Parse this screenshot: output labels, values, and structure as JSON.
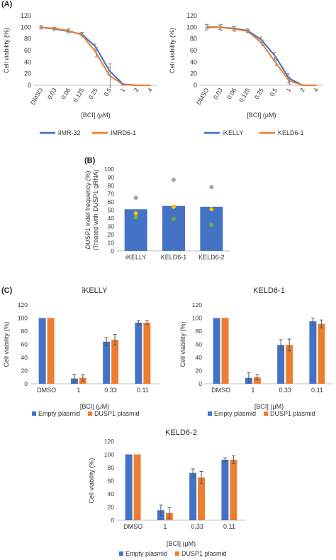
{
  "panel_labels": [
    "(A)",
    "(B)",
    "(C)"
  ],
  "chart_data": [
    {
      "type": "line",
      "panel": "(A)",
      "xlabel": "[BCI] (µM)",
      "ylabel": "Cell viability (%)",
      "ylim": [
        0,
        120
      ],
      "yticks": [
        0,
        20,
        40,
        60,
        80,
        100,
        120
      ],
      "categories": [
        "DMSO",
        "0.03",
        "0.06",
        "0.125",
        "0.25",
        "0.5",
        "1",
        "2",
        "4"
      ],
      "legend_position": "bottom",
      "series": [
        {
          "name": "iIMR-32",
          "color": "#3a6fc4",
          "values": [
            100,
            97,
            93,
            88,
            66,
            25,
            2,
            0,
            0
          ],
          "errors": [
            2,
            3,
            3,
            3,
            5,
            6,
            1,
            0,
            0
          ]
        },
        {
          "name": "IMRD6-1",
          "color": "#ed7d31",
          "values": [
            100,
            98,
            94,
            87,
            57,
            17,
            1,
            0,
            0
          ],
          "errors": [
            3,
            2,
            4,
            4,
            8,
            20,
            1,
            0,
            0
          ]
        }
      ]
    },
    {
      "type": "line",
      "panel": "(A)",
      "xlabel": "[BCI] (µM)",
      "ylabel": "Cell viability (%)",
      "ylim": [
        0,
        120
      ],
      "yticks": [
        0,
        20,
        40,
        60,
        80,
        100,
        120
      ],
      "categories": [
        "DMSO",
        "0.03",
        "0.06",
        "0.125",
        "0.25",
        "0.5",
        "1",
        "2",
        "4"
      ],
      "legend_position": "bottom",
      "series": [
        {
          "name": "iKELLY",
          "color": "#3a6fc4",
          "values": [
            100,
            100,
            98,
            94,
            78,
            50,
            12,
            0,
            0
          ],
          "errors": [
            5,
            4,
            3,
            3,
            5,
            7,
            8,
            0,
            0
          ]
        },
        {
          "name": "KELD6-1",
          "color": "#ed7d31",
          "values": [
            101,
            100,
            97,
            93,
            73,
            40,
            8,
            0,
            0
          ],
          "errors": [
            4,
            5,
            4,
            3,
            5,
            6,
            6,
            0,
            0
          ]
        }
      ]
    },
    {
      "type": "bar",
      "panel": "(B)",
      "ylabel_italic": "DUSP1",
      "ylabel_rest": " indel frequency (%)",
      "ylabel2": "(Treated with DUSP1 gRNA)",
      "ylim": [
        0,
        100
      ],
      "yticks": [
        0,
        10,
        20,
        30,
        40,
        50,
        60,
        70,
        80,
        90,
        100
      ],
      "categories": [
        "iKELLY",
        "KELD6-1",
        "KELD6-2"
      ],
      "values": [
        51,
        55,
        54
      ],
      "bar_color": "#4472c4",
      "points": [
        {
          "values": [
            65,
            87,
            78
          ],
          "color": "#a6a6a6"
        },
        {
          "values": [
            46,
            54,
            51
          ],
          "color": "#ffc000"
        },
        {
          "values": [
            41,
            39,
            32
          ],
          "color": "#70ad47"
        }
      ]
    },
    {
      "type": "bar",
      "panel": "(C)",
      "title": "iKELLY",
      "xlabel": "[BCI] (µM)",
      "ylabel": "Cell viability (%)",
      "ylim": [
        0,
        120
      ],
      "yticks": [
        0,
        20,
        40,
        60,
        80,
        100,
        120
      ],
      "categories": [
        "DMSO",
        "1",
        "0.33",
        "0.11"
      ],
      "legend_position": "bottom",
      "series": [
        {
          "name": "Empty plasmid",
          "color": "#4472c4",
          "values": [
            100,
            8,
            64,
            93
          ],
          "errors": [
            0,
            6,
            6,
            3
          ]
        },
        {
          "name": "DUSP1 plasmid",
          "color": "#ed7d31",
          "values": [
            100,
            9,
            67,
            93
          ],
          "errors": [
            0,
            5,
            8,
            3
          ]
        }
      ]
    },
    {
      "type": "bar",
      "panel": "(C)",
      "title": "KELD6-1",
      "xlabel": "[BCI] (µM)",
      "ylabel": "Cell viability (%)",
      "ylim": [
        0,
        120
      ],
      "yticks": [
        0,
        20,
        40,
        60,
        80,
        100,
        120
      ],
      "categories": [
        "DMSO",
        "1",
        "0.33",
        "0.11"
      ],
      "legend_position": "bottom",
      "series": [
        {
          "name": "Empty plasmid",
          "color": "#4472c4",
          "values": [
            100,
            9,
            59,
            95
          ],
          "errors": [
            0,
            8,
            8,
            5
          ]
        },
        {
          "name": "DUSP1 plasmid",
          "color": "#ed7d31",
          "values": [
            100,
            10,
            59,
            91
          ],
          "errors": [
            0,
            4,
            9,
            6
          ]
        }
      ]
    },
    {
      "type": "bar",
      "panel": "(C)",
      "title": "KELD6-2",
      "xlabel": "[BCI] (µM)",
      "ylabel": "Cell viability (%)",
      "ylim": [
        0,
        120
      ],
      "yticks": [
        0,
        20,
        40,
        60,
        80,
        100,
        120
      ],
      "categories": [
        "DMSO",
        "1",
        "0.33",
        "0.11"
      ],
      "legend_position": "bottom",
      "series": [
        {
          "name": "Empty plasmid",
          "color": "#4472c4",
          "values": [
            100,
            15,
            72,
            92
          ],
          "errors": [
            0,
            8,
            6,
            3
          ]
        },
        {
          "name": "DUSP1 plasmid",
          "color": "#ed7d31",
          "values": [
            100,
            11,
            65,
            92
          ],
          "errors": [
            0,
            8,
            9,
            6
          ]
        }
      ]
    }
  ]
}
